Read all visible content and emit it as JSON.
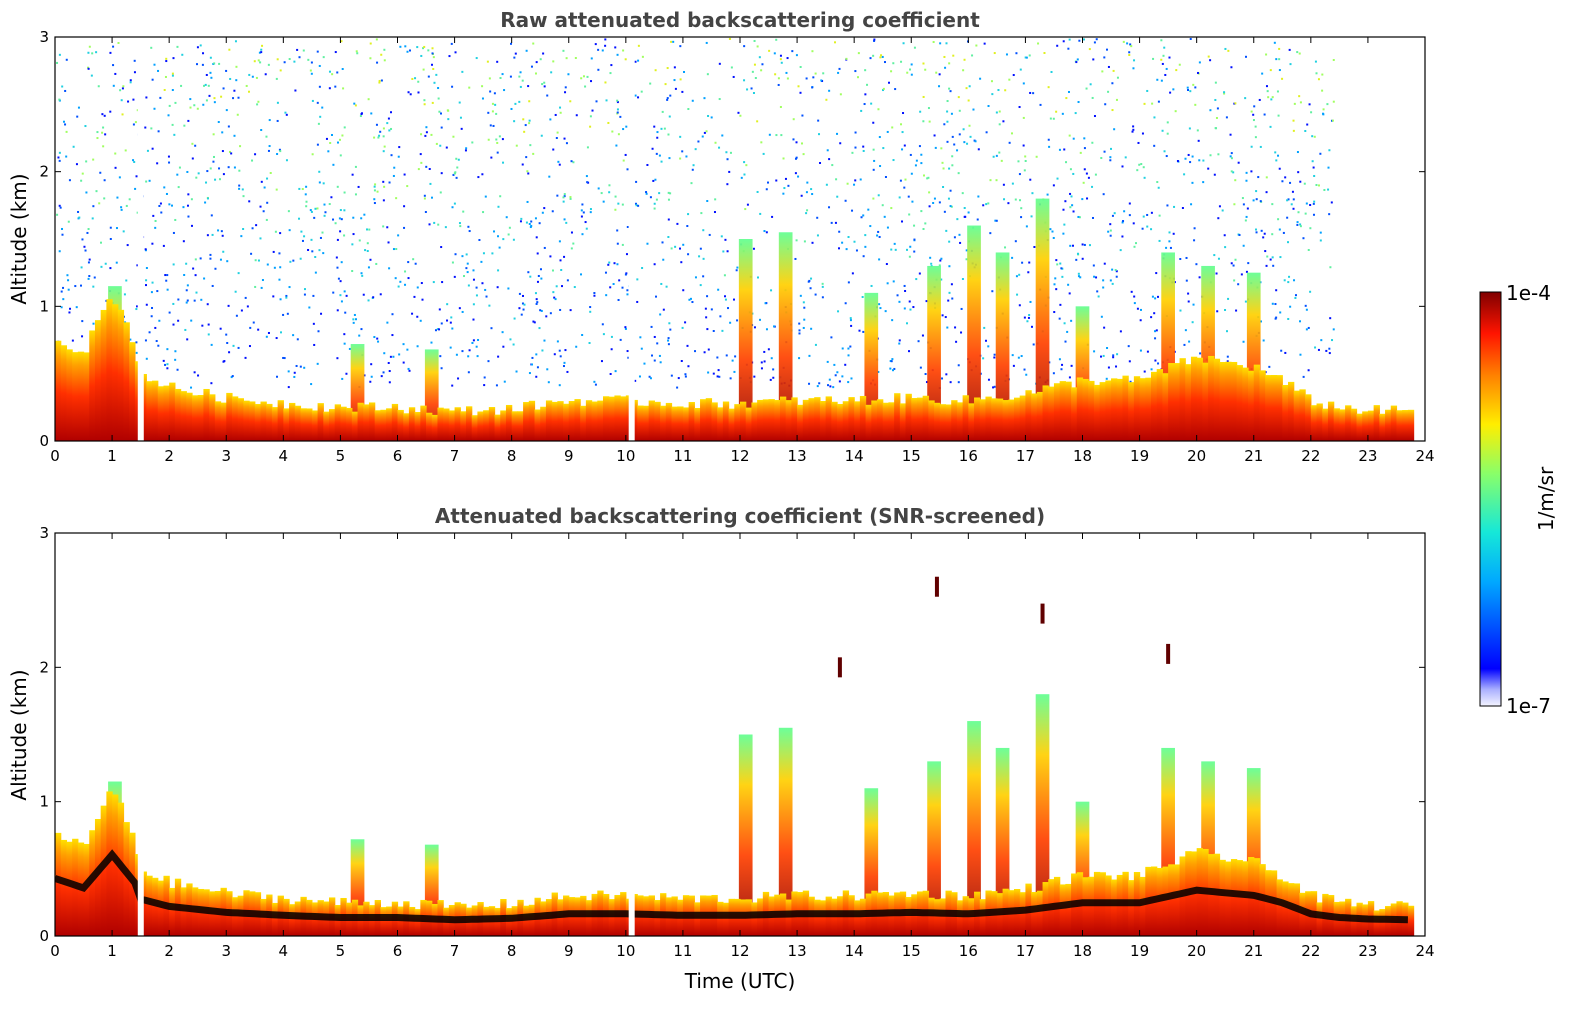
{
  "chart_data": [
    {
      "type": "heatmap",
      "title": "Raw attenuated backscattering coefficient",
      "xlabel": "",
      "ylabel": "Altitude (km)",
      "xlim": [
        0,
        24
      ],
      "ylim": [
        0,
        3
      ],
      "xticks": [
        "0",
        "1",
        "2",
        "3",
        "4",
        "5",
        "6",
        "7",
        "8",
        "9",
        "10",
        "11",
        "12",
        "13",
        "14",
        "15",
        "16",
        "17",
        "18",
        "19",
        "20",
        "21",
        "22",
        "23",
        "24"
      ],
      "yticks": [
        "0",
        "1",
        "2",
        "3"
      ],
      "boundary_layer_top_km": [
        {
          "t": 0,
          "h": 0.78
        },
        {
          "t": 0.5,
          "h": 0.65
        },
        {
          "t": 1.0,
          "h": 1.1
        },
        {
          "t": 1.4,
          "h": 0.72
        },
        {
          "t": 1.5,
          "h": 0.5
        },
        {
          "t": 2.0,
          "h": 0.4
        },
        {
          "t": 3.0,
          "h": 0.32
        },
        {
          "t": 4.0,
          "h": 0.28
        },
        {
          "t": 5.0,
          "h": 0.25
        },
        {
          "t": 6.0,
          "h": 0.25
        },
        {
          "t": 7.0,
          "h": 0.22
        },
        {
          "t": 8.0,
          "h": 0.24
        },
        {
          "t": 9.0,
          "h": 0.3
        },
        {
          "t": 10.0,
          "h": 0.3
        },
        {
          "t": 11.0,
          "h": 0.28
        },
        {
          "t": 12.0,
          "h": 0.28
        },
        {
          "t": 13.0,
          "h": 0.3
        },
        {
          "t": 14.0,
          "h": 0.3
        },
        {
          "t": 15.0,
          "h": 0.32
        },
        {
          "t": 16.0,
          "h": 0.3
        },
        {
          "t": 17.0,
          "h": 0.35
        },
        {
          "t": 18.0,
          "h": 0.45
        },
        {
          "t": 19.0,
          "h": 0.45
        },
        {
          "t": 20.0,
          "h": 0.62
        },
        {
          "t": 21.0,
          "h": 0.55
        },
        {
          "t": 21.5,
          "h": 0.45
        },
        {
          "t": 22.0,
          "h": 0.3
        },
        {
          "t": 22.5,
          "h": 0.25
        },
        {
          "t": 23.0,
          "h": 0.23
        },
        {
          "t": 23.8,
          "h": 0.22
        }
      ],
      "cloud_plumes": [
        {
          "t": 1.05,
          "top": 1.15
        },
        {
          "t": 5.3,
          "top": 0.72
        },
        {
          "t": 6.6,
          "top": 0.68
        },
        {
          "t": 12.1,
          "top": 1.5
        },
        {
          "t": 12.8,
          "top": 1.55
        },
        {
          "t": 14.3,
          "top": 1.1
        },
        {
          "t": 15.4,
          "top": 1.3
        },
        {
          "t": 16.1,
          "top": 1.6
        },
        {
          "t": 16.6,
          "top": 1.4
        },
        {
          "t": 17.3,
          "top": 1.8
        },
        {
          "t": 18.0,
          "top": 1.0
        },
        {
          "t": 19.5,
          "top": 1.4
        },
        {
          "t": 20.2,
          "top": 1.3
        },
        {
          "t": 21.0,
          "top": 1.25
        }
      ],
      "data_gaps_utc": [
        1.45,
        10.05
      ]
    },
    {
      "type": "heatmap",
      "title": "Attenuated backscattering coefficient (SNR-screened)",
      "xlabel": "Time (UTC)",
      "ylabel": "Altitude (km)",
      "xlim": [
        0,
        24
      ],
      "ylim": [
        0,
        3
      ],
      "xticks": [
        "0",
        "1",
        "2",
        "3",
        "4",
        "5",
        "6",
        "7",
        "8",
        "9",
        "10",
        "11",
        "12",
        "13",
        "14",
        "15",
        "16",
        "17",
        "18",
        "19",
        "20",
        "21",
        "22",
        "23",
        "24"
      ],
      "yticks": [
        "0",
        "1",
        "2",
        "3"
      ],
      "isolated_features": [
        {
          "t": 15.45,
          "h": 2.6
        },
        {
          "t": 17.3,
          "h": 2.4
        },
        {
          "t": 19.5,
          "h": 2.1
        },
        {
          "t": 13.75,
          "h": 2.0
        }
      ]
    }
  ],
  "colorbar": {
    "label": "1/m/sr",
    "max_label": "1e-4",
    "min_label": "1e-7",
    "colormap": "jet"
  }
}
